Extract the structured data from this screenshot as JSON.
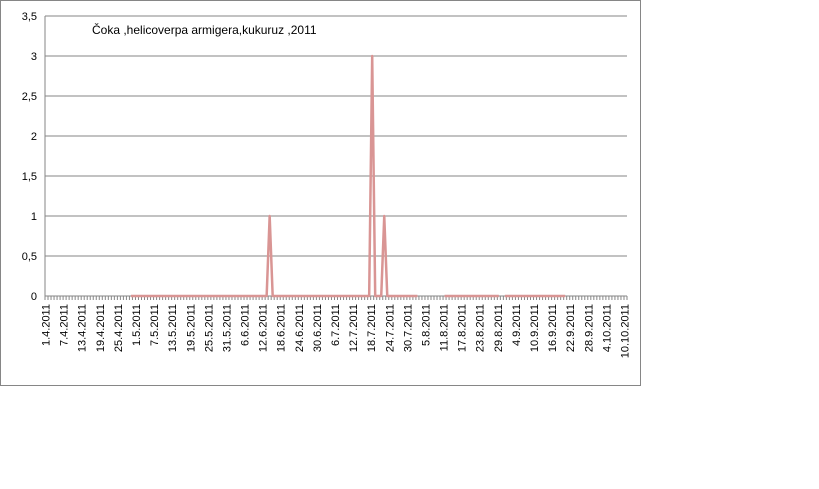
{
  "chart_data": {
    "type": "line",
    "title": "Čoka ,helicoverpa  armigera,kukuruz ,2011",
    "categories": [
      "1.4.2011",
      null,
      null,
      null,
      null,
      null,
      "7.4.2011",
      null,
      null,
      null,
      null,
      null,
      "13.4.2011",
      null,
      null,
      null,
      null,
      null,
      "19.4.2011",
      null,
      null,
      null,
      null,
      null,
      "25.4.2011",
      null,
      null,
      null,
      null,
      null,
      "1.5.2011",
      null,
      null,
      null,
      null,
      null,
      "7.5.2011",
      null,
      null,
      null,
      null,
      null,
      "13.5.2011",
      null,
      null,
      null,
      null,
      null,
      "19.5.2011",
      null,
      null,
      null,
      null,
      null,
      "25.5.2011",
      null,
      null,
      null,
      null,
      null,
      "31.5.2011",
      null,
      null,
      null,
      null,
      null,
      "6.6.2011",
      null,
      null,
      null,
      null,
      null,
      "12.6.2011",
      null,
      null,
      null,
      null,
      null,
      "18.6.2011",
      null,
      null,
      null,
      null,
      null,
      "24.6.2011",
      null,
      null,
      null,
      null,
      null,
      "30.6.2011",
      null,
      null,
      null,
      null,
      null,
      "6.7.2011",
      null,
      null,
      null,
      null,
      null,
      "12.7.2011",
      null,
      null,
      null,
      null,
      null,
      "18.7.2011",
      null,
      null,
      null,
      null,
      null,
      "24.7.2011",
      null,
      null,
      null,
      null,
      null,
      "30.7.2011",
      null,
      null,
      null,
      null,
      null,
      "5.8.2011",
      null,
      null,
      null,
      null,
      null,
      "11.8.2011",
      null,
      null,
      null,
      null,
      null,
      "17.8.2011",
      null,
      null,
      null,
      null,
      null,
      "23.8.2011",
      null,
      null,
      null,
      null,
      null,
      "29.8.2011",
      null,
      null,
      null,
      null,
      null,
      "4.9.2011",
      null,
      null,
      null,
      null,
      null,
      "10.9.2011",
      null,
      null,
      null,
      null,
      null,
      "16.9.2011",
      null,
      null,
      null,
      null,
      null,
      "22.9.2011",
      null,
      null,
      null,
      null,
      null,
      "28.9.2011",
      null,
      null,
      null,
      null,
      null,
      "4.10.2011",
      null,
      null,
      null,
      null,
      null,
      "10.10.2011"
    ],
    "values": [
      null,
      null,
      null,
      null,
      null,
      null,
      null,
      null,
      null,
      null,
      null,
      null,
      null,
      null,
      null,
      null,
      null,
      null,
      null,
      null,
      null,
      null,
      null,
      null,
      null,
      null,
      null,
      null,
      0,
      0,
      0,
      0,
      0,
      0,
      0,
      0,
      0,
      0,
      0,
      0,
      0,
      0,
      0,
      0,
      0,
      0,
      0,
      0,
      0,
      0,
      0,
      0,
      0,
      0,
      0,
      0,
      0,
      0,
      0,
      0,
      0,
      0,
      0,
      0,
      0,
      0,
      0,
      0,
      0,
      0,
      0,
      0,
      0,
      0,
      1,
      0,
      0,
      0,
      0,
      0,
      0,
      0,
      0,
      0,
      0,
      0,
      0,
      0,
      0,
      0,
      0,
      0,
      0,
      0,
      0,
      0,
      0,
      0,
      0,
      0,
      0,
      0,
      0,
      0,
      0,
      0,
      0,
      0,
      3,
      0,
      0,
      0,
      1,
      0,
      0,
      0,
      0,
      0,
      0,
      0,
      0,
      0,
      0,
      0,
      null,
      null,
      null,
      null,
      null,
      null,
      null,
      null,
      0,
      0,
      0,
      0,
      0,
      0,
      0,
      0,
      0,
      0,
      0,
      0,
      0,
      0,
      0,
      0,
      0,
      0,
      0,
      null,
      0,
      0,
      0,
      0,
      0,
      0,
      0,
      0,
      0,
      0,
      0,
      0,
      0,
      0,
      0,
      0,
      0,
      0,
      0,
      0,
      0,
      null,
      null,
      null,
      null,
      null,
      null,
      null,
      null,
      null,
      null,
      null,
      null,
      null,
      null,
      null,
      null,
      null,
      null,
      null,
      null
    ],
    "color": "#d99594",
    "ylim": [
      0,
      3.5
    ],
    "yticks": [
      0,
      {
        "value": 0.5,
        "label": "0,5"
      },
      1,
      {
        "value": 1.5,
        "label": "1,5"
      },
      2,
      {
        "value": 2.5,
        "label": "2,5"
      },
      3,
      {
        "value": 3.5,
        "label": "3,5"
      }
    ],
    "grid": true
  }
}
